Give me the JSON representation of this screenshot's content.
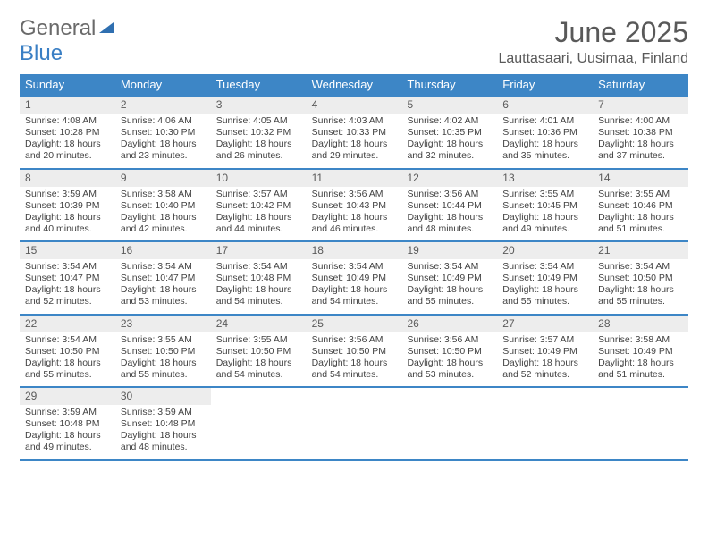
{
  "logo": {
    "top": "General",
    "bottom": "Blue"
  },
  "title": "June 2025",
  "subtitle": "Lauttasaari, Uusimaa, Finland",
  "colors": {
    "header_bg": "#3d86c6",
    "header_fg": "#ffffff",
    "daynum_bg": "#ededed",
    "rule": "#3d86c6",
    "text": "#424242",
    "title": "#595959",
    "logo_gray": "#6a6a6a",
    "logo_blue": "#3a7fc4"
  },
  "weekdays": [
    "Sunday",
    "Monday",
    "Tuesday",
    "Wednesday",
    "Thursday",
    "Friday",
    "Saturday"
  ],
  "weeks": [
    [
      {
        "n": "1",
        "sr": "4:08 AM",
        "ss": "10:28 PM",
        "dl": "18 hours and 20 minutes."
      },
      {
        "n": "2",
        "sr": "4:06 AM",
        "ss": "10:30 PM",
        "dl": "18 hours and 23 minutes."
      },
      {
        "n": "3",
        "sr": "4:05 AM",
        "ss": "10:32 PM",
        "dl": "18 hours and 26 minutes."
      },
      {
        "n": "4",
        "sr": "4:03 AM",
        "ss": "10:33 PM",
        "dl": "18 hours and 29 minutes."
      },
      {
        "n": "5",
        "sr": "4:02 AM",
        "ss": "10:35 PM",
        "dl": "18 hours and 32 minutes."
      },
      {
        "n": "6",
        "sr": "4:01 AM",
        "ss": "10:36 PM",
        "dl": "18 hours and 35 minutes."
      },
      {
        "n": "7",
        "sr": "4:00 AM",
        "ss": "10:38 PM",
        "dl": "18 hours and 37 minutes."
      }
    ],
    [
      {
        "n": "8",
        "sr": "3:59 AM",
        "ss": "10:39 PM",
        "dl": "18 hours and 40 minutes."
      },
      {
        "n": "9",
        "sr": "3:58 AM",
        "ss": "10:40 PM",
        "dl": "18 hours and 42 minutes."
      },
      {
        "n": "10",
        "sr": "3:57 AM",
        "ss": "10:42 PM",
        "dl": "18 hours and 44 minutes."
      },
      {
        "n": "11",
        "sr": "3:56 AM",
        "ss": "10:43 PM",
        "dl": "18 hours and 46 minutes."
      },
      {
        "n": "12",
        "sr": "3:56 AM",
        "ss": "10:44 PM",
        "dl": "18 hours and 48 minutes."
      },
      {
        "n": "13",
        "sr": "3:55 AM",
        "ss": "10:45 PM",
        "dl": "18 hours and 49 minutes."
      },
      {
        "n": "14",
        "sr": "3:55 AM",
        "ss": "10:46 PM",
        "dl": "18 hours and 51 minutes."
      }
    ],
    [
      {
        "n": "15",
        "sr": "3:54 AM",
        "ss": "10:47 PM",
        "dl": "18 hours and 52 minutes."
      },
      {
        "n": "16",
        "sr": "3:54 AM",
        "ss": "10:47 PM",
        "dl": "18 hours and 53 minutes."
      },
      {
        "n": "17",
        "sr": "3:54 AM",
        "ss": "10:48 PM",
        "dl": "18 hours and 54 minutes."
      },
      {
        "n": "18",
        "sr": "3:54 AM",
        "ss": "10:49 PM",
        "dl": "18 hours and 54 minutes."
      },
      {
        "n": "19",
        "sr": "3:54 AM",
        "ss": "10:49 PM",
        "dl": "18 hours and 55 minutes."
      },
      {
        "n": "20",
        "sr": "3:54 AM",
        "ss": "10:49 PM",
        "dl": "18 hours and 55 minutes."
      },
      {
        "n": "21",
        "sr": "3:54 AM",
        "ss": "10:50 PM",
        "dl": "18 hours and 55 minutes."
      }
    ],
    [
      {
        "n": "22",
        "sr": "3:54 AM",
        "ss": "10:50 PM",
        "dl": "18 hours and 55 minutes."
      },
      {
        "n": "23",
        "sr": "3:55 AM",
        "ss": "10:50 PM",
        "dl": "18 hours and 55 minutes."
      },
      {
        "n": "24",
        "sr": "3:55 AM",
        "ss": "10:50 PM",
        "dl": "18 hours and 54 minutes."
      },
      {
        "n": "25",
        "sr": "3:56 AM",
        "ss": "10:50 PM",
        "dl": "18 hours and 54 minutes."
      },
      {
        "n": "26",
        "sr": "3:56 AM",
        "ss": "10:50 PM",
        "dl": "18 hours and 53 minutes."
      },
      {
        "n": "27",
        "sr": "3:57 AM",
        "ss": "10:49 PM",
        "dl": "18 hours and 52 minutes."
      },
      {
        "n": "28",
        "sr": "3:58 AM",
        "ss": "10:49 PM",
        "dl": "18 hours and 51 minutes."
      }
    ],
    [
      {
        "n": "29",
        "sr": "3:59 AM",
        "ss": "10:48 PM",
        "dl": "18 hours and 49 minutes."
      },
      {
        "n": "30",
        "sr": "3:59 AM",
        "ss": "10:48 PM",
        "dl": "18 hours and 48 minutes."
      },
      null,
      null,
      null,
      null,
      null
    ]
  ],
  "labels": {
    "sunrise": "Sunrise:",
    "sunset": "Sunset:",
    "daylight": "Daylight:"
  }
}
